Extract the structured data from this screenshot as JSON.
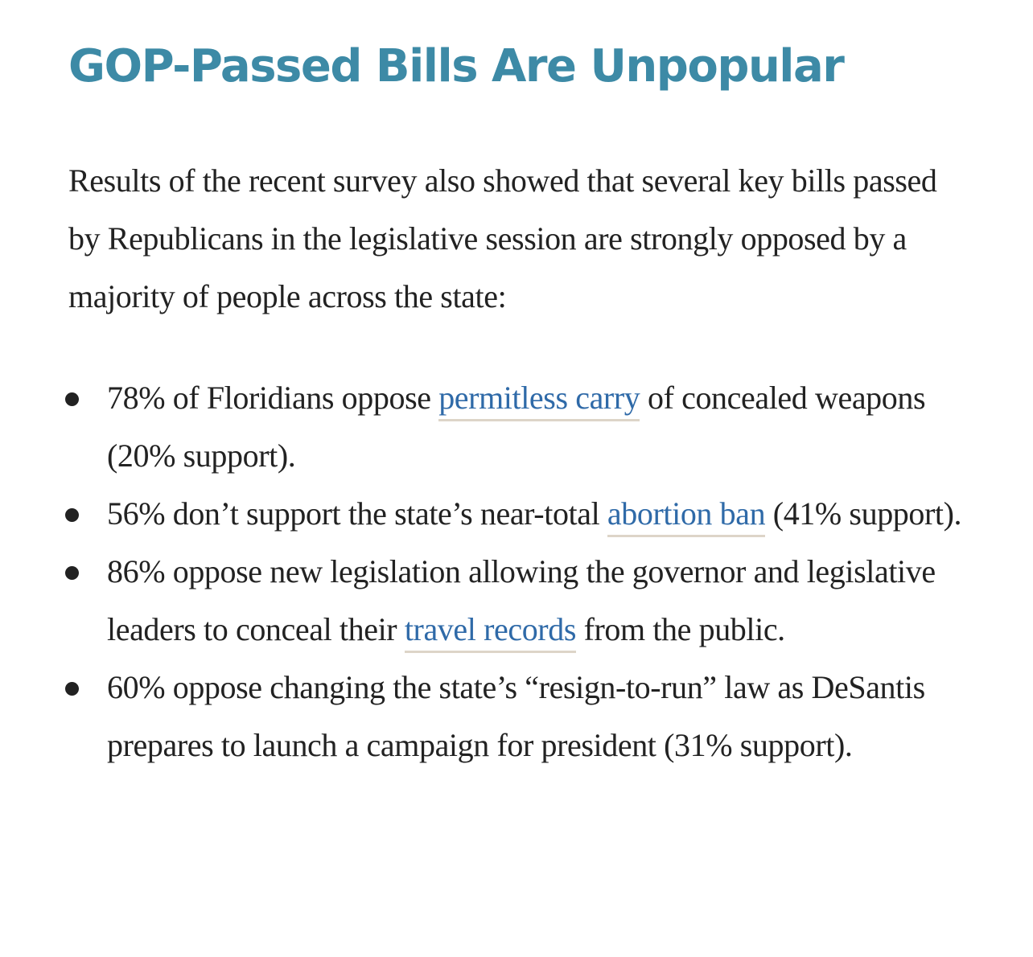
{
  "heading": "GOP-Passed Bills Are Unpopular",
  "paragraph": "Results of the recent survey also showed that several key bills passed by Republicans in the legislative session are strongly opposed by a majority of people across the state:",
  "items": [
    {
      "before": "78% of Floridians oppose ",
      "link": "permitless carry",
      "after": " of concealed weapons (20% support)."
    },
    {
      "before": "56% don’t support the state’s near-total ",
      "link": "abortion ban",
      "after": " (41% support)."
    },
    {
      "before": "86% oppose new legislation allowing the governor and legislative leaders to conceal their ",
      "link": "travel records",
      "after": " from the public."
    },
    {
      "before": "60% oppose changing the state’s “resign-to-run” law as DeSantis prepares to launch a campaign for president (31% support)."
    }
  ]
}
